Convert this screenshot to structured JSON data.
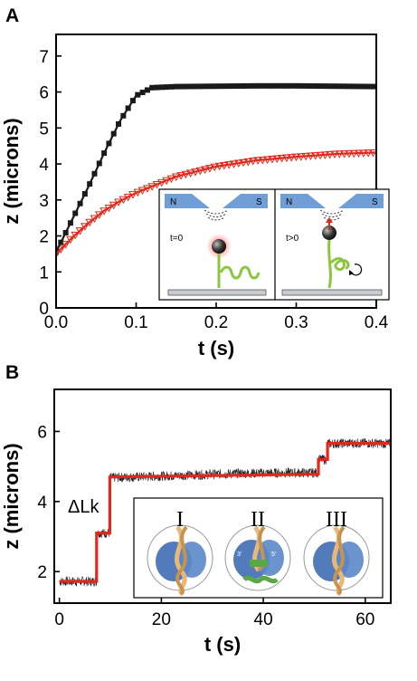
{
  "colors": {
    "black_series": "#1a1a1a",
    "red_series": "#e0281c",
    "magnet_blue": "#6f9fd6",
    "tether_green": "#8cc63f",
    "protein_blue": "#3e6db4",
    "dna_tan": "#e8b877",
    "surface_grey": "#c8ccd0"
  },
  "panels": {
    "a": {
      "letter": "A",
      "xlabel": "t (s)",
      "ylabel": "z (microns)",
      "xticks": [
        "0.0",
        "0.1",
        "0.2",
        "0.3",
        "0.4"
      ],
      "yticks": [
        "0",
        "1",
        "2",
        "3",
        "4",
        "5",
        "6",
        "7"
      ],
      "inset": {
        "left_magnet_n": "N",
        "left_magnet_s": "S",
        "left_time": "t=0",
        "right_magnet_n": "N",
        "right_magnet_s": "S",
        "right_time": "t>0"
      }
    },
    "b": {
      "letter": "B",
      "xlabel": "t (s)",
      "ylabel": "z (microns)",
      "xticks": [
        "0",
        "20",
        "40",
        "60"
      ],
      "yticks": [
        "2",
        "4",
        "6"
      ],
      "annotation": "ΔLk",
      "inset": {
        "state1": "I",
        "state2": "II",
        "state3": "III",
        "end3": "3'",
        "end5": "5'"
      }
    }
  },
  "chart_data": [
    {
      "type": "line",
      "panel": "A",
      "xlabel": "t (s)",
      "ylabel": "z (microns)",
      "xlim": [
        0,
        0.4
      ],
      "ylim": [
        0,
        7.6
      ],
      "xtick_values": [
        0,
        0.1,
        0.2,
        0.3,
        0.4
      ],
      "ytick_values": [
        0,
        1,
        2,
        3,
        4,
        5,
        6,
        7
      ],
      "grid": false,
      "legend": "none",
      "series": [
        {
          "marker": "filled-square",
          "color": "#1a1a1a",
          "x": [
            0,
            0.02,
            0.04,
            0.06,
            0.08,
            0.1,
            0.12,
            0.15,
            0.2,
            0.25,
            0.3,
            0.35,
            0.4
          ],
          "values": [
            1.55,
            2.45,
            3.35,
            4.3,
            5.2,
            5.9,
            6.12,
            6.15,
            6.16,
            6.17,
            6.17,
            6.16,
            6.15
          ]
        },
        {
          "marker": "open-triangle-down",
          "color": "#e0281c",
          "x": [
            0,
            0.02,
            0.04,
            0.06,
            0.08,
            0.1,
            0.15,
            0.2,
            0.25,
            0.3,
            0.35,
            0.4
          ],
          "values": [
            1.5,
            1.95,
            2.35,
            2.7,
            2.97,
            3.2,
            3.65,
            3.93,
            4.1,
            4.2,
            4.28,
            4.32
          ]
        }
      ]
    },
    {
      "type": "line",
      "panel": "B",
      "xlabel": "t (s)",
      "ylabel": "z (microns)",
      "xlim": [
        -1,
        65
      ],
      "ylim": [
        1.1,
        7.2
      ],
      "xtick_values": [
        0,
        20,
        40,
        60
      ],
      "ytick_values": [
        2,
        4,
        6
      ],
      "grid": false,
      "legend": "none",
      "series": [
        {
          "style": "raw-trace-black-dots",
          "color": "#1a1a1a",
          "x": [
            0,
            7.3,
            7.3,
            8.1,
            8.1,
            9.9,
            9.9,
            15,
            25,
            35,
            45,
            50.8,
            50.8,
            52.6,
            52.6,
            60,
            65
          ],
          "values": [
            1.72,
            1.72,
            3.1,
            3.1,
            3.1,
            3.1,
            4.68,
            4.7,
            4.75,
            4.8,
            4.82,
            4.82,
            5.2,
            5.2,
            5.65,
            5.67,
            5.65
          ]
        },
        {
          "style": "step-fit-red",
          "color": "#e0281c",
          "x": [
            0,
            7.3,
            7.3,
            9.9,
            9.9,
            50.8,
            50.8,
            52.6,
            52.6,
            65
          ],
          "values": [
            1.72,
            1.72,
            3.1,
            3.1,
            4.7,
            4.78,
            5.2,
            5.2,
            5.66,
            5.66
          ]
        }
      ]
    }
  ]
}
